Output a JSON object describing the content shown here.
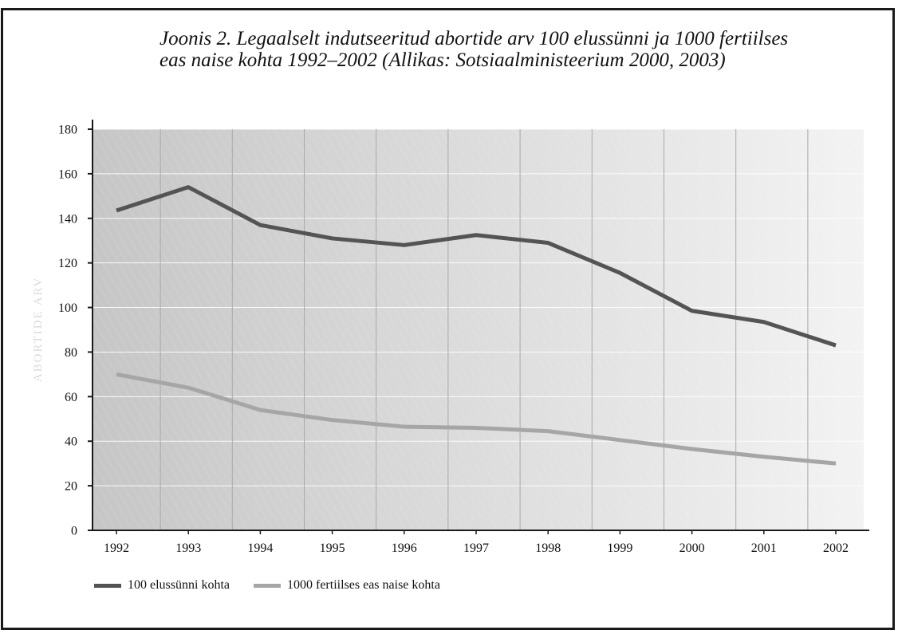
{
  "caption": {
    "line1": "Joonis 2. Legaalselt indutseeritud abortide arv 100 elussünni ja 1000 fertiilses",
    "line2": "eas naise kohta 1992–2002 (Allikas: Sotsiaalministeerium 2000, 2003)"
  },
  "colors": {
    "series1": "#545454",
    "series2": "#a6a6a6",
    "axis": "#1a1a1a",
    "grid_horizontal": "#ffffff",
    "grid_vertical": "#a9a9a9",
    "plot_bg_left": "#c6c6c6",
    "plot_bg_right": "#f3f3f3"
  },
  "chart_data": {
    "type": "line",
    "title": "Joonis 2. Legaalselt indutseeritud abortide arv 100 elussünni ja 1000 fertiilses eas naise kohta 1992–2002 (Allikas: Sotsiaalministeerium 2000, 2003)",
    "xlabel": "",
    "ylabel": "ABORTIDE ARV",
    "categories": [
      "1992",
      "1993",
      "1994",
      "1995",
      "1996",
      "1997",
      "1998",
      "1999",
      "2000",
      "2001",
      "2002"
    ],
    "ylim": [
      0,
      180
    ],
    "yticks": [
      0,
      20,
      40,
      60,
      80,
      100,
      120,
      140,
      160,
      180
    ],
    "grid": true,
    "legend_position": "bottom-left",
    "series": [
      {
        "name": "100 elussünni kohta",
        "values": [
          143.5,
          154,
          137,
          131,
          128,
          132.5,
          129,
          115.5,
          98.5,
          93.5,
          83
        ]
      },
      {
        "name": "1000 fertiilses eas naise kohta",
        "values": [
          70,
          64,
          54,
          49.5,
          46.5,
          46,
          44.5,
          40.5,
          36.5,
          33,
          30
        ]
      }
    ]
  }
}
